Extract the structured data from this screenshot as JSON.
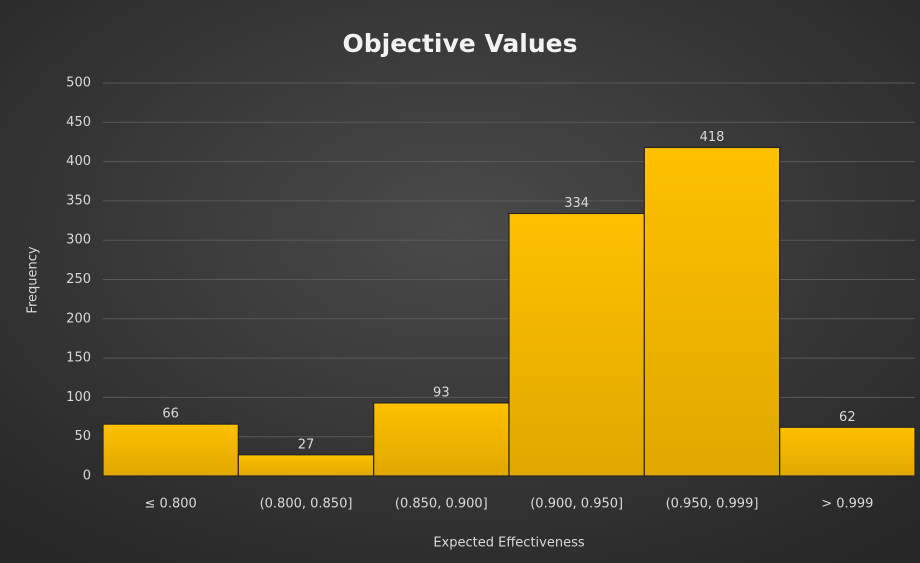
{
  "chart_data": {
    "type": "bar",
    "title": "Objective Values",
    "x_label": "Expected Effectiveness",
    "y_label": "Frequency",
    "categories": [
      "≤ 0.800",
      "(0.800, 0.850]",
      "(0.850, 0.900]",
      "(0.900, 0.950]",
      "(0.950, 0.999]",
      "> 0.999"
    ],
    "values": [
      66,
      27,
      93,
      334,
      418,
      62
    ],
    "color": "#ffc000",
    "ylim": [
      0,
      500
    ],
    "yticks": [
      0,
      50,
      100,
      150,
      200,
      250,
      300,
      350,
      400,
      450,
      500
    ],
    "grid": true
  }
}
